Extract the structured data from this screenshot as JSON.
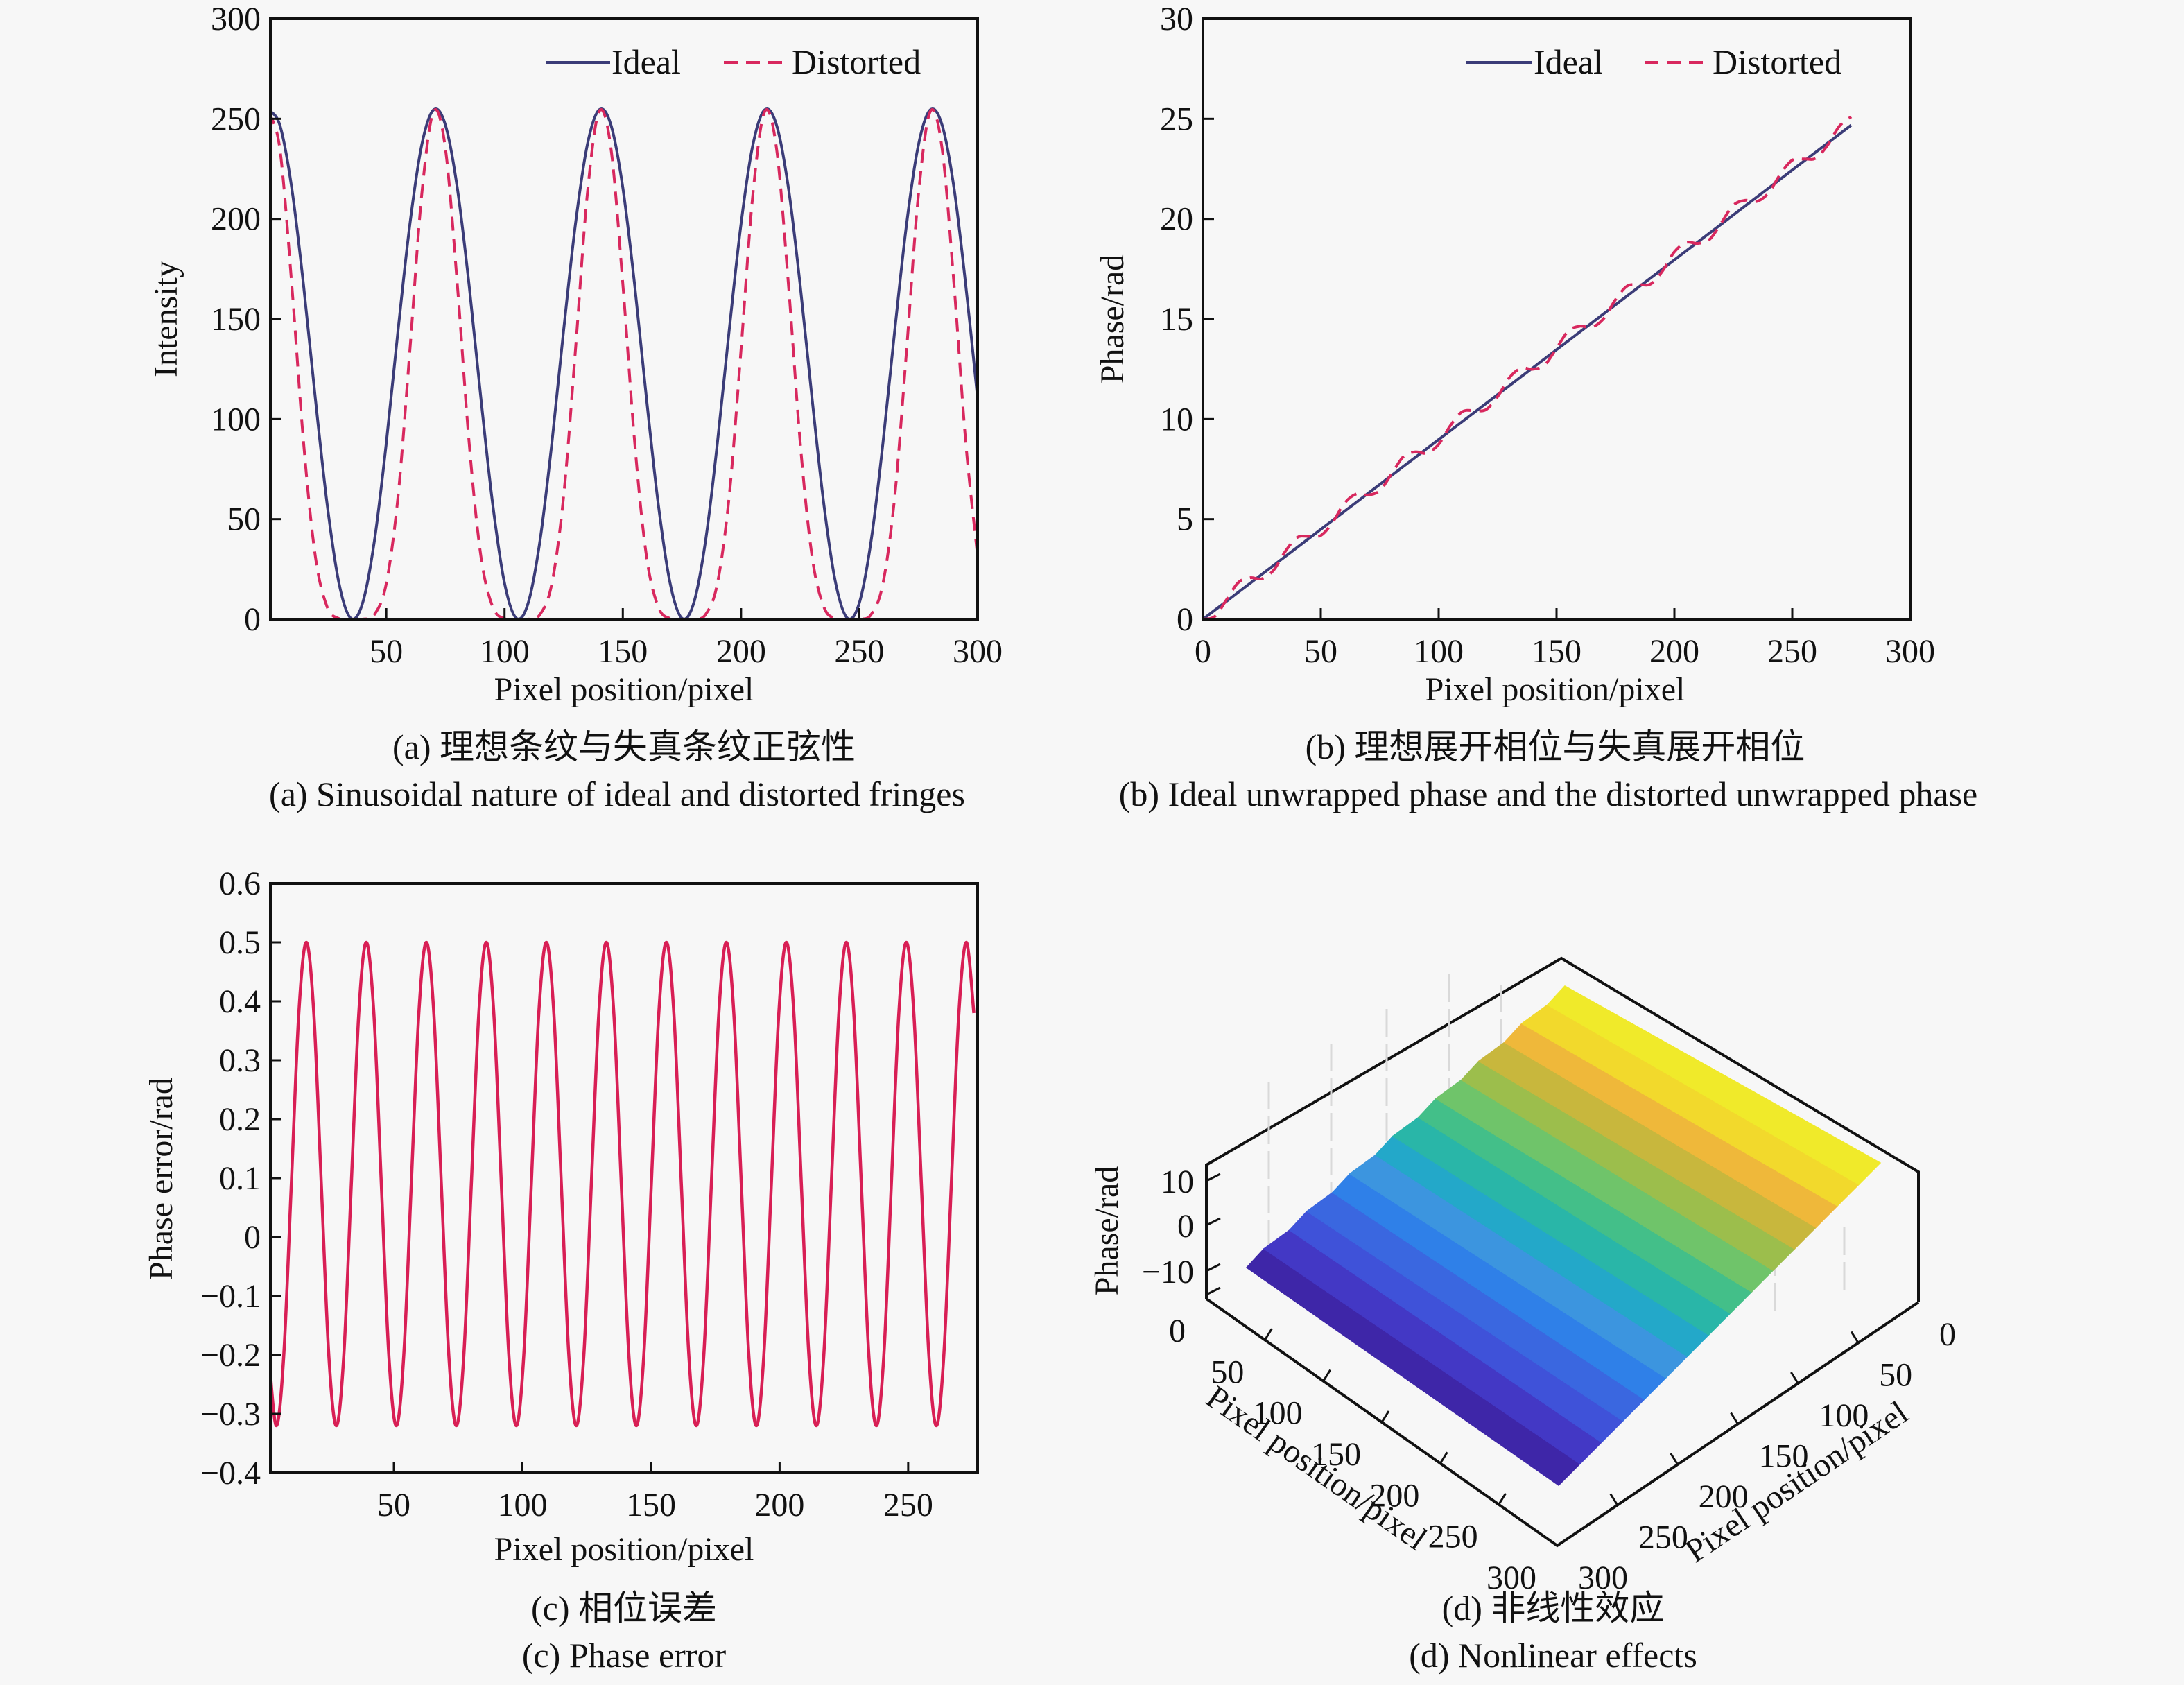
{
  "figure": {
    "background": "#f7f7f7",
    "colors": {
      "ideal": "#3b3c78",
      "distorted": "#d8285e",
      "phase_error": "#d81f55",
      "axis": "#111111"
    }
  },
  "chart_data": [
    {
      "id": "a",
      "type": "line",
      "title": "",
      "xlabel": "Pixel position/pixel",
      "ylabel": "Intensity",
      "xlim": [
        1,
        300
      ],
      "ylim": [
        0,
        300
      ],
      "xticks": [
        50,
        100,
        150,
        200,
        250,
        300
      ],
      "yticks": [
        0,
        50,
        100,
        150,
        200,
        250,
        300
      ],
      "legend": {
        "placement": "top-right",
        "entries": [
          "Ideal",
          "Distorted"
        ]
      },
      "x_start": 0,
      "x_step": 5,
      "series": [
        {
          "name": "Ideal",
          "style": "solid",
          "values": [
            254.5,
            246.9,
            215.6,
            166.9,
            110.4,
            57.3,
            18.0,
            0.5,
            8.1,
            39.4,
            88.1,
            144.6,
            197.7,
            237.0,
            254.5,
            246.9,
            215.6,
            166.9,
            110.4,
            57.3,
            18.0,
            0.5,
            8.1,
            39.4,
            88.1,
            144.6,
            197.7,
            237.0,
            254.5,
            246.9,
            215.6,
            166.9,
            110.4,
            57.3,
            18.0,
            0.5,
            8.1,
            39.4,
            88.1,
            144.6,
            197.7,
            237.0,
            254.5,
            246.9,
            215.6,
            166.9,
            110.4,
            57.3,
            18.0,
            0.5,
            8.1,
            39.4,
            88.1,
            144.6,
            197.7,
            237.0,
            254.5,
            246.9,
            215.6,
            166.9,
            110.4
          ]
        },
        {
          "name": "Distorted",
          "style": "dashed",
          "values": [
            253.7,
            235.1,
            167.6,
            88.4,
            31.5,
            6.1,
            0.3,
            0,
            0,
            2.4,
            17.9,
            61.7,
            135.0,
            212.3,
            253.7,
            235.1,
            167.6,
            88.4,
            31.5,
            6.1,
            0.3,
            0,
            0,
            2.4,
            17.9,
            61.7,
            135.0,
            212.3,
            253.7,
            235.1,
            167.6,
            88.4,
            31.5,
            6.1,
            0.3,
            0,
            0,
            2.4,
            17.9,
            61.7,
            135.0,
            212.3,
            253.7,
            235.1,
            167.6,
            88.4,
            31.5,
            6.1,
            0.3,
            0,
            0,
            2.4,
            17.9,
            61.7,
            135.0,
            212.3,
            253.7,
            235.1,
            167.6,
            88.4,
            31.5
          ]
        }
      ],
      "caption_cn": "(a) 理想条纹与失真条纹正弦性",
      "caption_en": "(a) Sinusoidal nature of ideal and distorted fringes"
    },
    {
      "id": "b",
      "type": "line",
      "xlabel": "Pixel position/pixel",
      "ylabel": "Phase/rad",
      "xlim": [
        0,
        300
      ],
      "ylim": [
        0,
        30
      ],
      "xticks": [
        0,
        50,
        100,
        150,
        200,
        250,
        300
      ],
      "yticks": [
        0,
        5,
        10,
        15,
        20,
        25,
        30
      ],
      "legend": {
        "placement": "top-right",
        "entries": [
          "Ideal",
          "Distorted"
        ]
      },
      "x_start": 0,
      "x_step": 5,
      "series": [
        {
          "name": "Ideal",
          "style": "solid",
          "values": [
            0.0,
            0.449,
            0.898,
            1.346,
            1.795,
            2.244,
            2.693,
            3.142,
            3.59,
            4.039,
            4.488,
            4.937,
            5.386,
            5.834,
            6.283,
            6.732,
            7.181,
            7.63,
            8.078,
            8.527,
            8.976,
            9.425,
            9.874,
            10.322,
            10.771,
            11.22,
            11.669,
            12.118,
            12.566,
            13.015,
            13.464,
            13.913,
            14.362,
            14.81,
            15.259,
            15.708,
            16.157,
            16.606,
            17.054,
            17.503,
            17.952,
            18.401,
            18.85,
            19.298,
            19.747,
            20.196,
            20.645,
            21.094,
            21.542,
            21.991,
            22.44,
            22.889,
            23.338,
            23.786,
            24.235,
            24.684
          ]
        },
        {
          "name": "Distorted",
          "style": "dashed",
          "values": [
            0.0,
            0.136,
            0.973,
            1.832,
            2.076,
            2.022,
            2.454,
            3.397,
            4.083,
            4.143,
            4.182,
            4.837,
            5.788,
            6.253,
            6.208,
            6.419,
            7.256,
            8.116,
            8.359,
            8.305,
            8.737,
            9.68,
            10.367,
            10.426,
            10.465,
            11.12,
            12.071,
            12.537,
            12.491,
            12.702,
            13.539,
            14.399,
            14.643,
            14.588,
            15.02,
            15.963,
            16.65,
            16.71,
            16.748,
            17.403,
            18.354,
            18.82,
            18.775,
            18.985,
            19.822,
            20.682,
            20.926,
            20.872,
            21.303,
            22.246,
            22.933,
            22.993,
            23.032,
            23.686,
            24.637,
            25.103
          ]
        }
      ],
      "caption_cn": "(b) 理想展开相位与失真展开相位",
      "caption_en": "(b) Ideal unwrapped phase and the distorted unwrapped phase"
    },
    {
      "id": "c",
      "type": "line",
      "xlabel": "Pixel position/pixel",
      "ylabel": "Phase error/rad",
      "xlim": [
        2,
        277
      ],
      "ylim": [
        -0.4,
        0.6
      ],
      "xticks": [
        50,
        100,
        150,
        200,
        250
      ],
      "yticks": [
        -0.4,
        -0.3,
        -0.2,
        -0.1,
        0,
        0.1,
        0.2,
        0.3,
        0.4,
        0.5,
        0.6
      ],
      "ytick_labels": [
        "−0.4",
        "−0.3",
        "−0.2",
        "−0.1",
        "0",
        "0.1",
        "0.2",
        "0.3",
        "0.4",
        "0.5",
        "0.6"
      ],
      "x_start": 1.38,
      "x_step": 2.9166,
      "series": [
        {
          "name": "Phase error",
          "style": "solid",
          "values": [
            -0.2,
            -0.32,
            -0.2,
            0.09,
            0.38,
            0.5,
            0.38,
            0.09,
            -0.2,
            -0.32,
            -0.2,
            0.09,
            0.38,
            0.5,
            0.38,
            0.09,
            -0.2,
            -0.32,
            -0.2,
            0.09,
            0.38,
            0.5,
            0.38,
            0.09,
            -0.2,
            -0.32,
            -0.2,
            0.09,
            0.38,
            0.5,
            0.38,
            0.09,
            -0.2,
            -0.32,
            -0.2,
            0.09,
            0.38,
            0.5,
            0.38,
            0.09,
            -0.2,
            -0.32,
            -0.2,
            0.09,
            0.38,
            0.5,
            0.38,
            0.09,
            -0.2,
            -0.32,
            -0.2,
            0.09,
            0.38,
            0.5,
            0.38,
            0.09,
            -0.2,
            -0.32,
            -0.2,
            0.09,
            0.38,
            0.5,
            0.38,
            0.09,
            -0.2,
            -0.32,
            -0.2,
            0.09,
            0.38,
            0.5,
            0.38,
            0.09,
            -0.2,
            -0.32,
            -0.2,
            0.09,
            0.38,
            0.5,
            0.38,
            0.09,
            -0.2,
            -0.32,
            -0.2,
            0.09,
            0.38,
            0.5,
            0.38,
            0.09,
            -0.2,
            -0.32,
            -0.2,
            0.09,
            0.38,
            0.5,
            0.38
          ]
        }
      ],
      "caption_cn": "(c) 相位误差",
      "caption_en": "(c) Phase error"
    },
    {
      "id": "d",
      "type": "surface",
      "zlabel": "Phase/rad",
      "xlabel": "Pixel position/pixel",
      "ylabel": "Pixel position/pixel",
      "xlim": [
        0,
        300
      ],
      "ylim": [
        0,
        300
      ],
      "zlim": [
        -15,
        15
      ],
      "zticks": [
        -10,
        0,
        10
      ],
      "ztick_labels": [
        "−10",
        "0",
        "10"
      ],
      "xticks": [
        0,
        50,
        100,
        150,
        200,
        250,
        300
      ],
      "yticks": [
        0,
        50,
        100,
        150,
        200,
        250,
        300
      ],
      "surface": {
        "description": "Distorted unwrapped phase ramp along one pixel axis, constant along the other",
        "z_min": -12.4,
        "z_max": 12.6,
        "band_levels": 14,
        "colormap": [
          "#3e26a8",
          "#4338c5",
          "#3f52d9",
          "#3a67e0",
          "#2f80e8",
          "#3c95df",
          "#23a8c9",
          "#29b6a8",
          "#43bf89",
          "#6fc46a",
          "#9cbe4c",
          "#c8b73d",
          "#efb83a",
          "#f2d92c",
          "#f0ea2a"
        ]
      },
      "caption_cn": "(d) 非线性效应",
      "caption_en": "(d) Nonlinear effects"
    }
  ]
}
